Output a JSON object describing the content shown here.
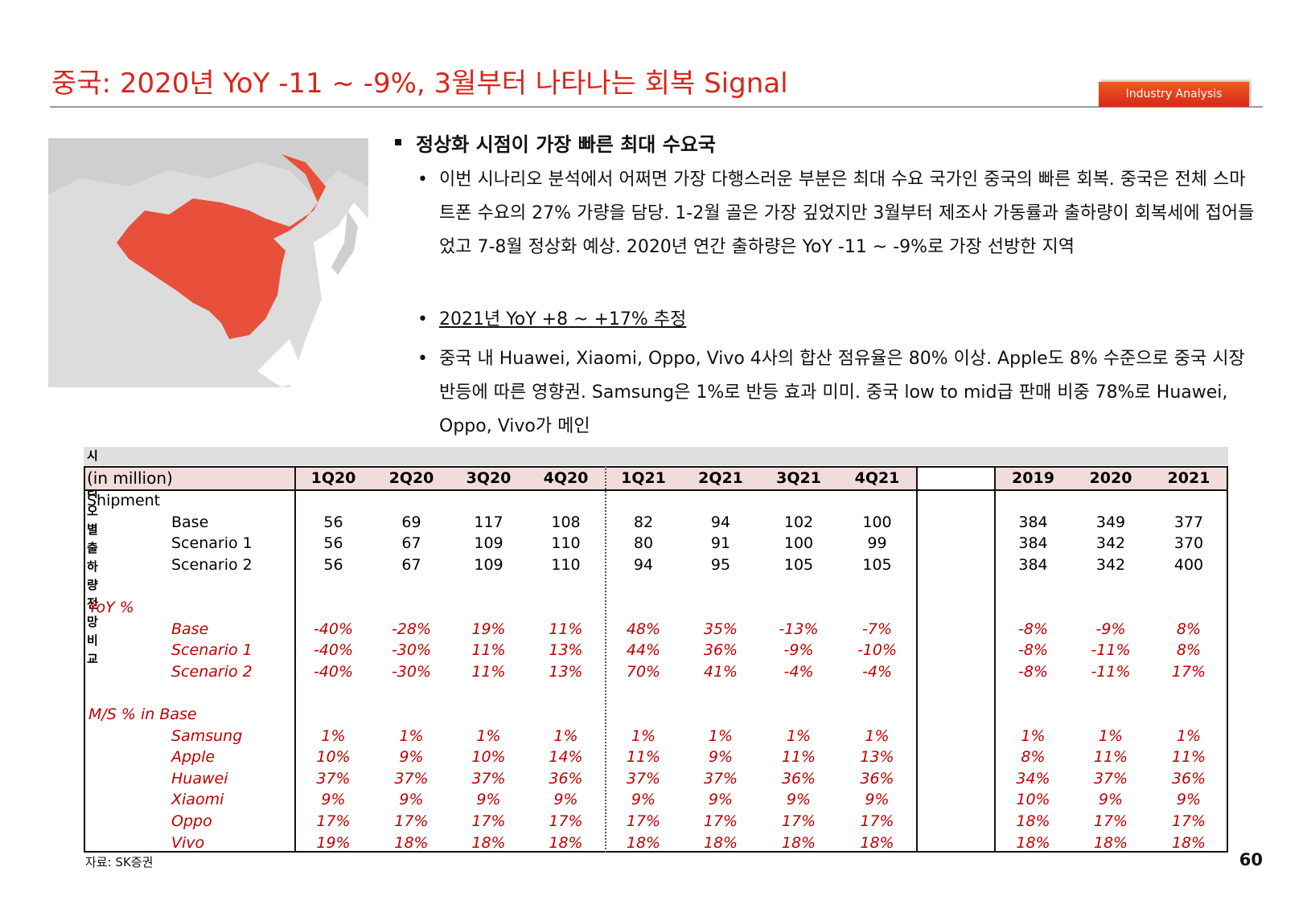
{
  "header": {
    "title": "중국: 2020년 YoY -11 ~ -9%, 3월부터 나타나는 회복 Signal",
    "badge": "Industry Analysis"
  },
  "content": {
    "heading": "정상화 시점이 가장 빠른 최대 수요국",
    "bullets": [
      "이번 시나리오 분석에서 어쩌면 가장 다행스러운 부분은 최대 수요 국가인 중국의 빠른 회복. 중국은 전체 스마트폰 수요의 27% 가량을 담당. 1-2월 골은 가장 깊었지만 3월부터 제조사 가동률과 출하량이 회복세에 접어들었고 7-8월 정상화 예상. 2020년 연간 출하량은 YoY -11 ~ -9%로 가장 선방한 지역",
      "2021년 YoY +8 ~ +17% 추정",
      "중국 내 Huawei, Xiaomi, Oppo, Vivo 4사의 합산 점유율은 80% 이상. Apple도 8% 수준으로 중국 시장 반등에 따른 영향권. Samsung은 1%로 반등 효과 미미. 중국 low to mid급 판매 비중 78%로 Huawei, Oppo, Vivo가 메인"
    ]
  },
  "table": {
    "title": "시나리오별 출하량 전망 비교",
    "unit": "(in million)",
    "columns": [
      "1Q20",
      "2Q20",
      "3Q20",
      "4Q20",
      "1Q21",
      "2Q21",
      "3Q21",
      "4Q21",
      "2019",
      "2020",
      "2021"
    ],
    "sections": [
      {
        "title": "Shipment",
        "rows": [
          {
            "label": "Base",
            "values": [
              "56",
              "69",
              "117",
              "108",
              "82",
              "94",
              "102",
              "100",
              "384",
              "349",
              "377"
            ]
          },
          {
            "label": "Scenario 1",
            "values": [
              "56",
              "67",
              "109",
              "110",
              "80",
              "91",
              "100",
              "99",
              "384",
              "342",
              "370"
            ]
          },
          {
            "label": "Scenario 2",
            "values": [
              "56",
              "67",
              "109",
              "110",
              "94",
              "95",
              "105",
              "105",
              "384",
              "342",
              "400"
            ]
          }
        ]
      },
      {
        "title": "YoY %",
        "rows": [
          {
            "label": "Base",
            "values": [
              "-40%",
              "-28%",
              "19%",
              "11%",
              "48%",
              "35%",
              "-13%",
              "-7%",
              "-8%",
              "-9%",
              "8%"
            ]
          },
          {
            "label": "Scenario 1",
            "values": [
              "-40%",
              "-30%",
              "11%",
              "13%",
              "44%",
              "36%",
              "-9%",
              "-10%",
              "-8%",
              "-11%",
              "8%"
            ]
          },
          {
            "label": "Scenario 2",
            "values": [
              "-40%",
              "-30%",
              "11%",
              "13%",
              "70%",
              "41%",
              "-4%",
              "-4%",
              "-8%",
              "-11%",
              "17%"
            ]
          }
        ]
      },
      {
        "title": "M/S % in Base",
        "rows": [
          {
            "label": "Samsung",
            "values": [
              "1%",
              "1%",
              "1%",
              "1%",
              "1%",
              "1%",
              "1%",
              "1%",
              "1%",
              "1%",
              "1%"
            ]
          },
          {
            "label": "Apple",
            "values": [
              "10%",
              "9%",
              "10%",
              "14%",
              "11%",
              "9%",
              "11%",
              "13%",
              "8%",
              "11%",
              "11%"
            ]
          },
          {
            "label": "Huawei",
            "values": [
              "37%",
              "37%",
              "37%",
              "36%",
              "37%",
              "37%",
              "36%",
              "36%",
              "34%",
              "37%",
              "36%"
            ]
          },
          {
            "label": "Xiaomi",
            "values": [
              "9%",
              "9%",
              "9%",
              "9%",
              "9%",
              "9%",
              "9%",
              "9%",
              "10%",
              "9%",
              "9%"
            ]
          },
          {
            "label": "Oppo",
            "values": [
              "17%",
              "17%",
              "17%",
              "17%",
              "17%",
              "17%",
              "17%",
              "17%",
              "18%",
              "17%",
              "17%"
            ]
          },
          {
            "label": "Vivo",
            "values": [
              "19%",
              "18%",
              "18%",
              "18%",
              "18%",
              "18%",
              "18%",
              "18%",
              "18%",
              "18%",
              "18%"
            ]
          }
        ]
      }
    ]
  },
  "footer": {
    "source": "자료: SK증권",
    "page": "60"
  }
}
